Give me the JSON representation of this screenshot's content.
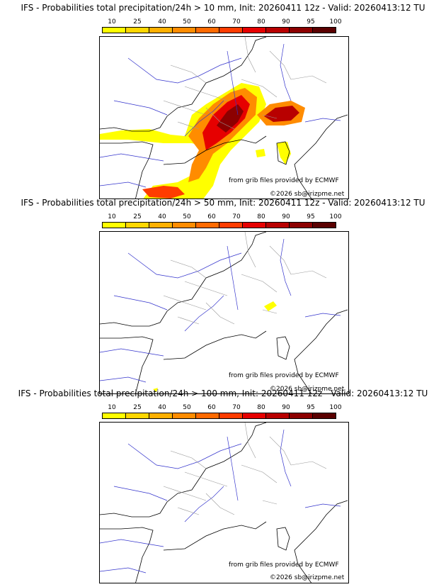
{
  "panels": [
    {
      "title": "IFS - Probabilities total precipitation/24h > 10 mm, Init: 20260411 12z - Valid: 20260413:12 TU",
      "threshold_mm": 10,
      "credit_source": "from grib files provided by ECMWF",
      "credit_copyright": "©2026 sb@irizpme.net"
    },
    {
      "title": "IFS - Probabilities total precipitation/24h > 50 mm, Init: 20260411 12z - Valid: 20260413:12 TU",
      "threshold_mm": 50,
      "credit_source": "from grib files provided by ECMWF",
      "credit_copyright": "©2026 sb@irizpme.net"
    },
    {
      "title": "IFS - Probabilities total precipitation/24h > 100 mm, Init: 20260411 12z - Valid: 20260413:12 TU",
      "threshold_mm": 100,
      "credit_source": "from grib files provided by ECMWF",
      "credit_copyright": "©2026 sb@irizpme.net"
    }
  ],
  "colorbar": {
    "labels": [
      "10",
      "25",
      "40",
      "50",
      "60",
      "70",
      "80",
      "90",
      "95",
      "100"
    ],
    "colors": [
      "#ffff00",
      "#ffd700",
      "#ffb000",
      "#ff8c00",
      "#ff6a00",
      "#ff3c00",
      "#e60000",
      "#b80000",
      "#8c0000",
      "#5a0000"
    ]
  },
  "map_colors": {
    "coastline": "#000000",
    "rivers": "#3333cc",
    "borders": "#999999"
  }
}
